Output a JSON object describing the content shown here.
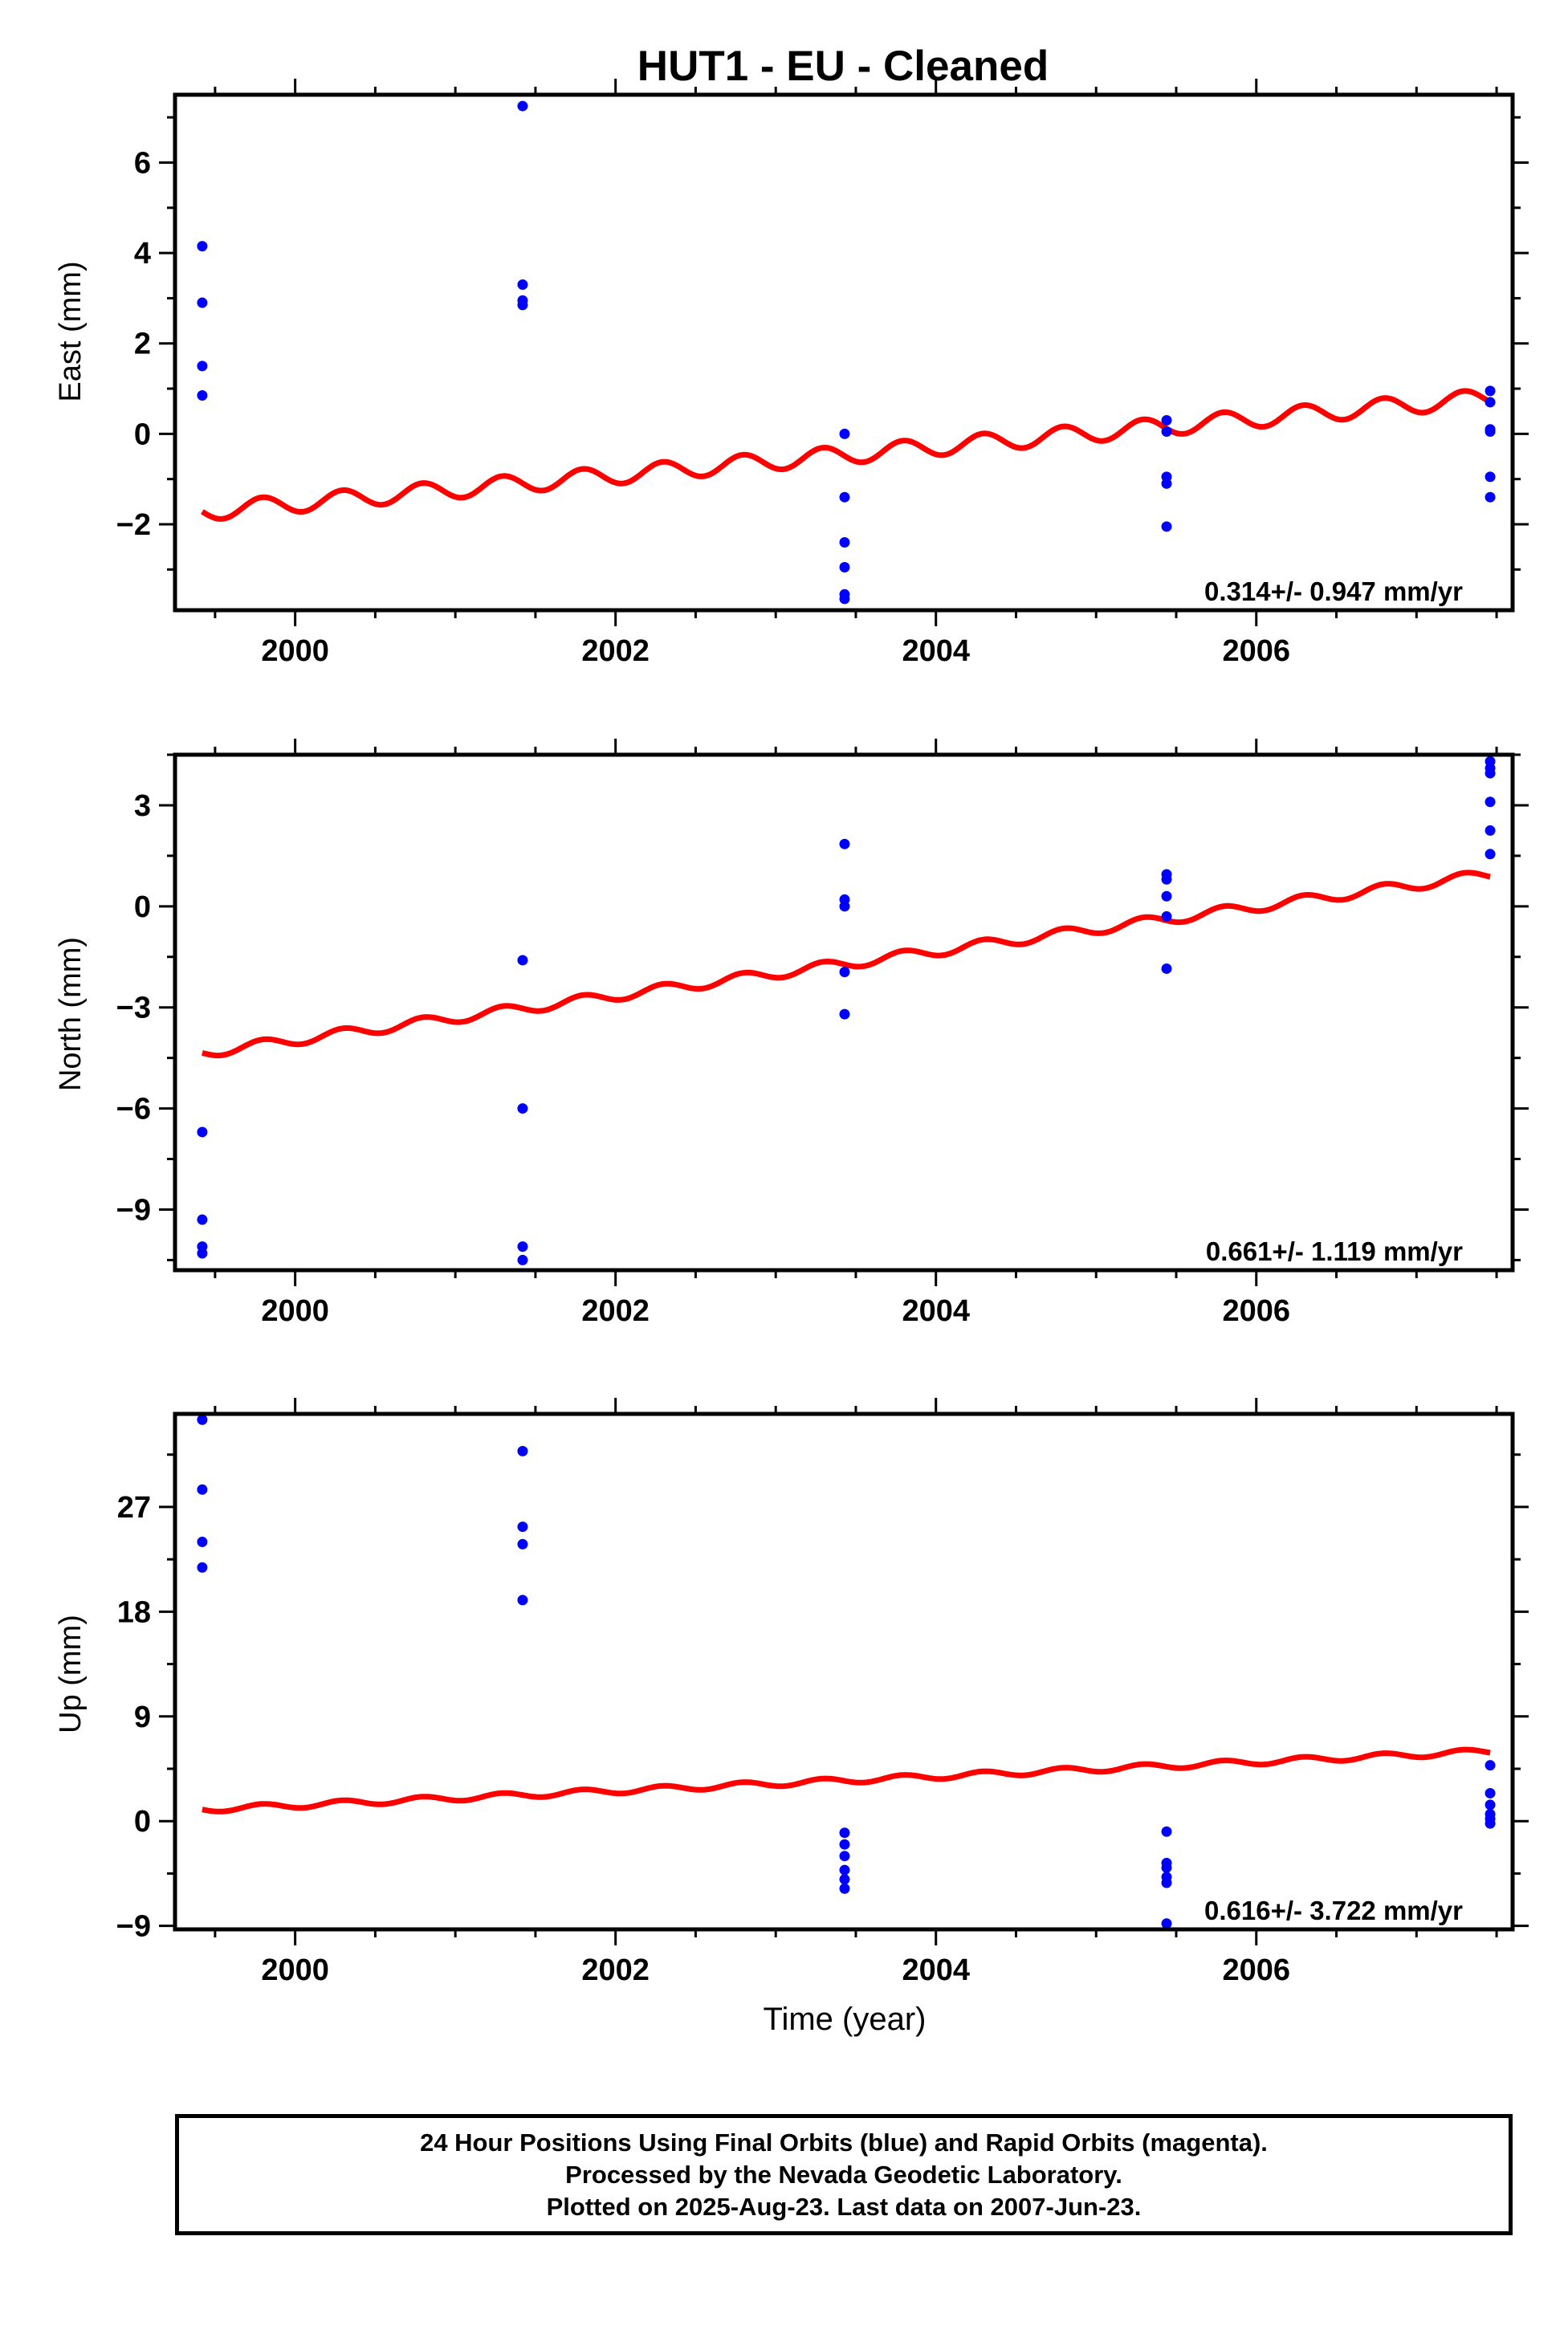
{
  "title": "HUT1  - EU - Cleaned",
  "x_axis_label": "Time (year)",
  "footer": {
    "line1": "24 Hour Positions Using Final Orbits (blue) and Rapid Orbits (magenta).",
    "line2": "Processed by the Nevada Geodetic Laboratory.",
    "line3": "Plotted on 2025-Aug-23. Last data on 2007-Jun-23."
  },
  "colors": {
    "data_points": "#0000ff",
    "model_line": "#ff0000",
    "frame": "#000000"
  },
  "chart_data": [
    {
      "type": "scatter",
      "panel": "east",
      "ylabel": "East (mm)",
      "xlim": [
        1999.25,
        2007.6
      ],
      "ylim": [
        -3.9,
        7.5
      ],
      "x_ticks": [
        2000,
        2002,
        2004,
        2006
      ],
      "y_ticks": [
        -2,
        0,
        2,
        4,
        6
      ],
      "y_tick_labels": [
        "−2",
        "0",
        "2",
        "4",
        "6"
      ],
      "annotation": "0.314+/- 0.947 mm/yr",
      "points": {
        "x": [
          1999.42,
          1999.42,
          1999.42,
          1999.42,
          2001.42,
          2001.42,
          2001.42,
          2001.42,
          2003.43,
          2003.43,
          2003.43,
          2003.43,
          2003.43,
          2003.43,
          2005.44,
          2005.44,
          2005.44,
          2005.44,
          2005.44,
          2007.46,
          2007.46,
          2007.46,
          2007.46,
          2007.46,
          2007.46
        ],
        "y": [
          4.15,
          2.9,
          1.5,
          0.85,
          7.25,
          3.3,
          2.95,
          2.85,
          0.0,
          -1.4,
          -2.4,
          -2.95,
          -3.55,
          -3.65,
          0.3,
          0.05,
          -0.95,
          -1.1,
          -2.05,
          0.95,
          0.7,
          0.1,
          0.05,
          -0.95,
          -1.4
        ]
      },
      "trend": {
        "start": [
          1999.42,
          -1.72
        ],
        "end": [
          2007.46,
          0.8
        ],
        "seasonal_amplitude": 0.2
      }
    },
    {
      "type": "scatter",
      "panel": "north",
      "ylabel": "North (mm)",
      "xlim": [
        1999.25,
        2007.6
      ],
      "ylim": [
        -10.8,
        4.5
      ],
      "x_ticks": [
        2000,
        2002,
        2004,
        2006
      ],
      "y_ticks": [
        -9,
        -6,
        -3,
        0,
        3
      ],
      "y_tick_labels": [
        "−9",
        "−6",
        "−3",
        "0",
        "3"
      ],
      "annotation": "0.661+/- 1.119 mm/yr",
      "points": {
        "x": [
          1999.42,
          1999.42,
          1999.42,
          1999.42,
          2001.42,
          2001.42,
          2001.42,
          2001.42,
          2003.43,
          2003.43,
          2003.43,
          2003.43,
          2003.43,
          2005.44,
          2005.44,
          2005.44,
          2005.44,
          2005.44,
          2007.46,
          2007.46,
          2007.46,
          2007.46,
          2007.46,
          2007.46
        ],
        "y": [
          -6.7,
          -9.3,
          -10.1,
          -10.3,
          -1.6,
          -6.0,
          -10.1,
          -10.5,
          1.85,
          0.2,
          0.0,
          -1.95,
          -3.2,
          0.95,
          0.8,
          0.3,
          -0.3,
          -1.85,
          4.3,
          3.95,
          3.1,
          2.25,
          1.55,
          4.1
        ]
      },
      "trend": {
        "start": [
          1999.42,
          -4.35
        ],
        "end": [
          2007.46,
          0.95
        ],
        "seasonal_amplitude": 0.15
      }
    },
    {
      "type": "scatter",
      "panel": "up",
      "ylabel": "Up (mm)",
      "xlim": [
        1999.25,
        2007.6
      ],
      "ylim": [
        -9.3,
        35.0
      ],
      "x_ticks": [
        2000,
        2002,
        2004,
        2006
      ],
      "y_ticks": [
        -9,
        0,
        9,
        18,
        27
      ],
      "y_tick_labels": [
        "−9",
        "0",
        "9",
        "18",
        "27"
      ],
      "annotation": "0.616+/- 3.722 mm/yr",
      "points": {
        "x": [
          1999.42,
          1999.42,
          1999.42,
          1999.42,
          2001.42,
          2001.42,
          2001.42,
          2001.42,
          2003.43,
          2003.43,
          2003.43,
          2003.43,
          2003.43,
          2003.43,
          2005.44,
          2005.44,
          2005.44,
          2005.44,
          2005.44,
          2005.44,
          2007.46,
          2007.46,
          2007.46,
          2007.46,
          2007.46,
          2007.46
        ],
        "y": [
          34.5,
          28.5,
          24.0,
          21.8,
          31.8,
          25.3,
          23.8,
          19.0,
          -1.0,
          -2.0,
          -3.0,
          -4.2,
          -5.0,
          -5.8,
          -0.9,
          -3.6,
          -4.0,
          -4.8,
          -5.3,
          -8.8,
          4.8,
          2.4,
          1.4,
          0.6,
          0.2,
          -0.2
        ]
      },
      "trend": {
        "start": [
          1999.42,
          1.0
        ],
        "end": [
          2007.46,
          6.0
        ],
        "seasonal_amplitude": 0.25
      }
    }
  ]
}
